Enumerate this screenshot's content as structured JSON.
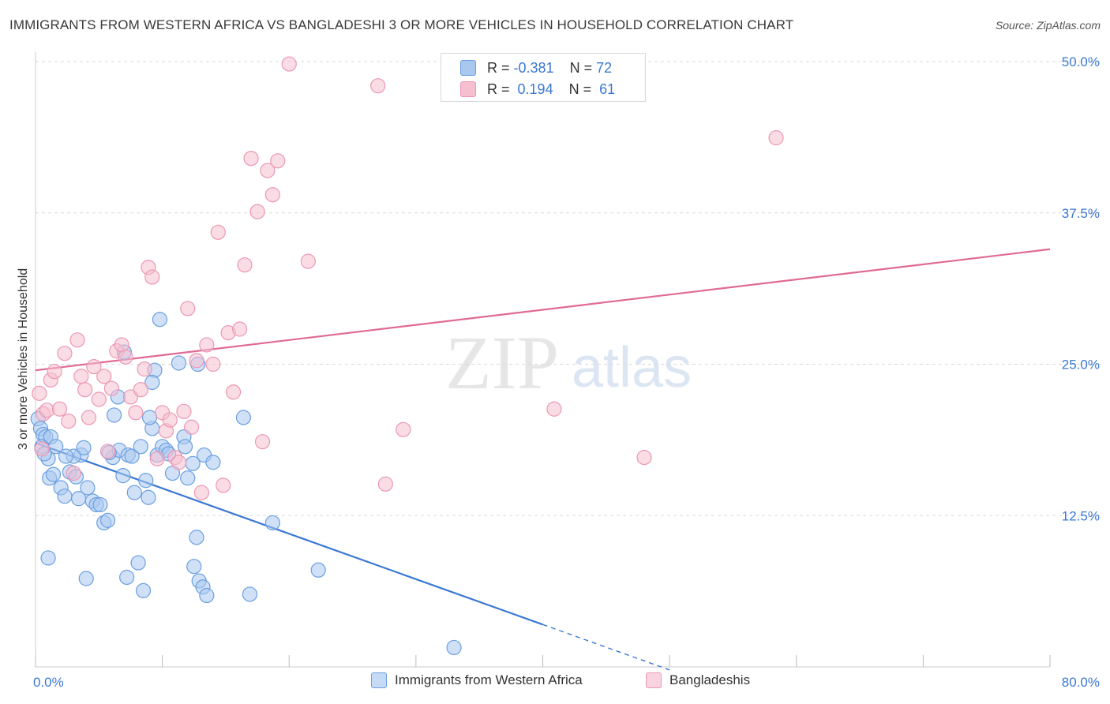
{
  "title": "IMMIGRANTS FROM WESTERN AFRICA VS BANGLADESHI 3 OR MORE VEHICLES IN HOUSEHOLD CORRELATION CHART",
  "source": "Source: ZipAtlas.com",
  "watermark": {
    "zip": "ZIP",
    "atlas": "atlas"
  },
  "colors": {
    "blue": "#3a78d4",
    "blue_fill": "#a9c8f0",
    "blue_stroke": "#6a9fe0",
    "pink": "#e06a95",
    "pink_fill": "#f6bfd0",
    "pink_stroke": "#ec97b4",
    "grid": "#d9d9d9",
    "axis_label": "#3a78d4"
  },
  "legend_top": {
    "rows": [
      {
        "r_label": "R =",
        "r_value": "-0.381",
        "n_label": "N =",
        "n_value": "72"
      },
      {
        "r_label": "R =",
        "r_value": "0.194",
        "n_label": "N =",
        "n_value": "61"
      }
    ]
  },
  "chart_data": {
    "type": "scatter",
    "title": "IMMIGRANTS FROM WESTERN AFRICA VS BANGLADESHI 3 OR MORE VEHICLES IN HOUSEHOLD CORRELATION CHART",
    "xlabel": "",
    "ylabel": "3 or more Vehicles in Household",
    "xlim": [
      0,
      80
    ],
    "ylim": [
      0,
      50
    ],
    "x_tick_labels": [
      "0.0%",
      "80.0%"
    ],
    "y_ticks": [
      12.5,
      25.0,
      37.5,
      50.0
    ],
    "y_tick_labels": [
      "12.5%",
      "25.0%",
      "37.5%",
      "50.0%"
    ],
    "grid": true,
    "legend_position": "bottom",
    "series": [
      {
        "name": "Immigrants from Western Africa",
        "color": "#3a78d4",
        "trend": {
          "x": [
            0,
            40
          ],
          "y": [
            18.5,
            3.5
          ],
          "dashed_to_x": 50
        },
        "points": [
          [
            0.2,
            20.5
          ],
          [
            0.4,
            19.7
          ],
          [
            0.6,
            19.2
          ],
          [
            0.8,
            19.0
          ],
          [
            0.5,
            18.2
          ],
          [
            1.0,
            17.2
          ],
          [
            1.2,
            19.0
          ],
          [
            1.6,
            18.2
          ],
          [
            0.7,
            17.6
          ],
          [
            1.1,
            15.6
          ],
          [
            1.4,
            15.9
          ],
          [
            2.0,
            14.8
          ],
          [
            2.3,
            14.1
          ],
          [
            2.7,
            16.1
          ],
          [
            3.2,
            15.7
          ],
          [
            3.6,
            17.5
          ],
          [
            3.8,
            18.1
          ],
          [
            3.4,
            13.9
          ],
          [
            4.1,
            14.8
          ],
          [
            4.5,
            13.7
          ],
          [
            4.8,
            13.4
          ],
          [
            5.1,
            13.4
          ],
          [
            5.4,
            11.9
          ],
          [
            5.7,
            12.1
          ],
          [
            6.1,
            17.3
          ],
          [
            6.6,
            17.9
          ],
          [
            6.9,
            15.8
          ],
          [
            7.3,
            17.5
          ],
          [
            7.6,
            17.4
          ],
          [
            6.2,
            20.8
          ],
          [
            7.0,
            26.0
          ],
          [
            6.5,
            22.3
          ],
          [
            7.8,
            14.4
          ],
          [
            8.3,
            18.2
          ],
          [
            8.7,
            15.4
          ],
          [
            8.1,
            8.6
          ],
          [
            8.5,
            6.3
          ],
          [
            7.2,
            7.4
          ],
          [
            9.2,
            19.7
          ],
          [
            9.0,
            20.6
          ],
          [
            9.4,
            24.5
          ],
          [
            9.2,
            23.5
          ],
          [
            8.9,
            14.0
          ],
          [
            9.6,
            17.5
          ],
          [
            10.0,
            18.2
          ],
          [
            10.3,
            17.9
          ],
          [
            10.5,
            17.6
          ],
          [
            9.8,
            28.7
          ],
          [
            10.8,
            16.0
          ],
          [
            11.3,
            25.1
          ],
          [
            11.7,
            19.0
          ],
          [
            11.8,
            18.2
          ],
          [
            12.4,
            16.8
          ],
          [
            12.7,
            10.7
          ],
          [
            12.5,
            8.3
          ],
          [
            12.9,
            7.1
          ],
          [
            13.2,
            6.6
          ],
          [
            12.0,
            15.6
          ],
          [
            12.8,
            25.0
          ],
          [
            13.3,
            17.5
          ],
          [
            14.0,
            16.9
          ],
          [
            13.5,
            5.9
          ],
          [
            16.4,
            20.6
          ],
          [
            16.9,
            6.0
          ],
          [
            18.7,
            11.9
          ],
          [
            22.3,
            8.0
          ],
          [
            1.0,
            9.0
          ],
          [
            4.0,
            7.3
          ],
          [
            33.0,
            1.6
          ],
          [
            3.0,
            17.4
          ],
          [
            2.4,
            17.4
          ],
          [
            5.8,
            17.7
          ]
        ]
      },
      {
        "name": "Bangladeshis",
        "color": "#e06a95",
        "trend": {
          "x": [
            0,
            80
          ],
          "y": [
            24.5,
            34.5
          ]
        },
        "points": [
          [
            0.3,
            22.6
          ],
          [
            0.6,
            20.9
          ],
          [
            0.9,
            21.2
          ],
          [
            0.5,
            18.0
          ],
          [
            1.2,
            23.7
          ],
          [
            1.5,
            24.4
          ],
          [
            1.9,
            21.3
          ],
          [
            2.3,
            25.9
          ],
          [
            2.6,
            20.3
          ],
          [
            3.0,
            16.0
          ],
          [
            3.3,
            27.0
          ],
          [
            3.6,
            24.0
          ],
          [
            3.9,
            22.9
          ],
          [
            4.2,
            20.6
          ],
          [
            4.6,
            24.8
          ],
          [
            5.0,
            22.1
          ],
          [
            5.4,
            24.0
          ],
          [
            5.7,
            17.8
          ],
          [
            6.0,
            23.0
          ],
          [
            6.4,
            26.1
          ],
          [
            6.8,
            26.6
          ],
          [
            7.1,
            25.6
          ],
          [
            7.5,
            22.3
          ],
          [
            7.9,
            21.0
          ],
          [
            8.3,
            22.9
          ],
          [
            8.6,
            24.6
          ],
          [
            8.9,
            33.0
          ],
          [
            9.2,
            32.2
          ],
          [
            9.6,
            17.2
          ],
          [
            10.0,
            21.0
          ],
          [
            10.3,
            19.5
          ],
          [
            10.6,
            20.4
          ],
          [
            11.0,
            17.3
          ],
          [
            11.3,
            16.9
          ],
          [
            11.7,
            21.1
          ],
          [
            12.0,
            29.6
          ],
          [
            12.3,
            19.8
          ],
          [
            12.7,
            25.3
          ],
          [
            13.1,
            14.4
          ],
          [
            13.5,
            26.6
          ],
          [
            14.0,
            25.0
          ],
          [
            14.4,
            35.9
          ],
          [
            14.8,
            15.0
          ],
          [
            15.2,
            27.6
          ],
          [
            15.6,
            22.7
          ],
          [
            16.1,
            27.9
          ],
          [
            16.5,
            33.2
          ],
          [
            17.0,
            42.0
          ],
          [
            17.5,
            37.6
          ],
          [
            17.9,
            18.6
          ],
          [
            18.3,
            41.0
          ],
          [
            18.7,
            39.0
          ],
          [
            19.1,
            41.8
          ],
          [
            20.0,
            49.8
          ],
          [
            21.5,
            33.5
          ],
          [
            27.0,
            48.0
          ],
          [
            29.0,
            19.6
          ],
          [
            27.6,
            15.1
          ],
          [
            40.9,
            21.3
          ],
          [
            48.0,
            17.3
          ],
          [
            58.4,
            43.7
          ]
        ]
      }
    ]
  }
}
